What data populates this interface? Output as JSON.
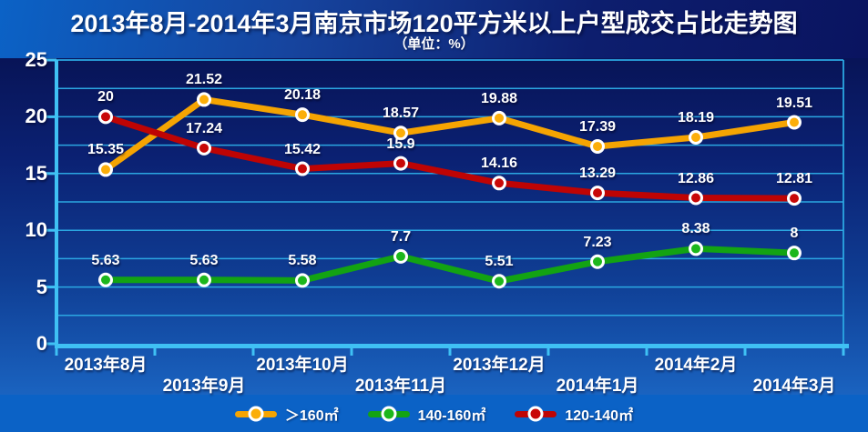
{
  "title": "2013年8月-2014年3月南京市场120平方米以上户型成交占比走势图",
  "subtitle": "（单位：%）",
  "colors": {
    "page_background": "#0B62C6",
    "title_band_dark": "#0A1460",
    "chart_band_top": "#081457",
    "chart_band_bottom": "#1A63C0",
    "gridline": "#2BA7E2",
    "axis": "#3FC1F4",
    "text": "#FFFFFF"
  },
  "chart_data": {
    "type": "line",
    "title": "2013年8月-2014年3月南京市场120平方米以上户型成交占比走势图",
    "subtitle": "（单位：%）",
    "categories": [
      "2013年8月",
      "2013年9月",
      "2013年10月",
      "2013年11月",
      "2013年12月",
      "2014年1月",
      "2014年2月",
      "2014年3月"
    ],
    "series": [
      {
        "name": "＞160㎡",
        "color": "#F5A402",
        "marker_fill": "#FBAE09",
        "values": [
          15.35,
          21.52,
          20.18,
          18.57,
          19.88,
          17.39,
          18.19,
          19.51
        ],
        "labels": [
          "15.35",
          "21.52",
          "20.18",
          "18.57",
          "19.88",
          "17.39",
          "18.19",
          "19.51"
        ]
      },
      {
        "name": "140-160㎡",
        "color": "#13A313",
        "marker_fill": "#1CB71C",
        "values": [
          5.63,
          5.63,
          5.58,
          7.7,
          5.51,
          7.23,
          8.38,
          8
        ],
        "labels": [
          "5.63",
          "5.63",
          "5.58",
          "7.7",
          "5.51",
          "7.23",
          "8.38",
          "8"
        ]
      },
      {
        "name": "120-140㎡",
        "color": "#BE0404",
        "marker_fill": "#C80808",
        "values": [
          20,
          17.24,
          15.42,
          15.9,
          14.16,
          13.29,
          12.86,
          12.81
        ],
        "labels": [
          "20",
          "17.24",
          "15.42",
          "15.9",
          "14.16",
          "13.29",
          "12.86",
          "12.81"
        ]
      }
    ],
    "xlabel": "",
    "ylabel": "",
    "ylim": [
      0,
      25
    ],
    "y_grid_step": 2.5,
    "y_tick_step": 5,
    "y_tick_labels": [
      "0",
      "5",
      "10",
      "15",
      "20",
      "25"
    ],
    "grid": true,
    "legend_position": "bottom",
    "x_labels_staggered": true
  }
}
